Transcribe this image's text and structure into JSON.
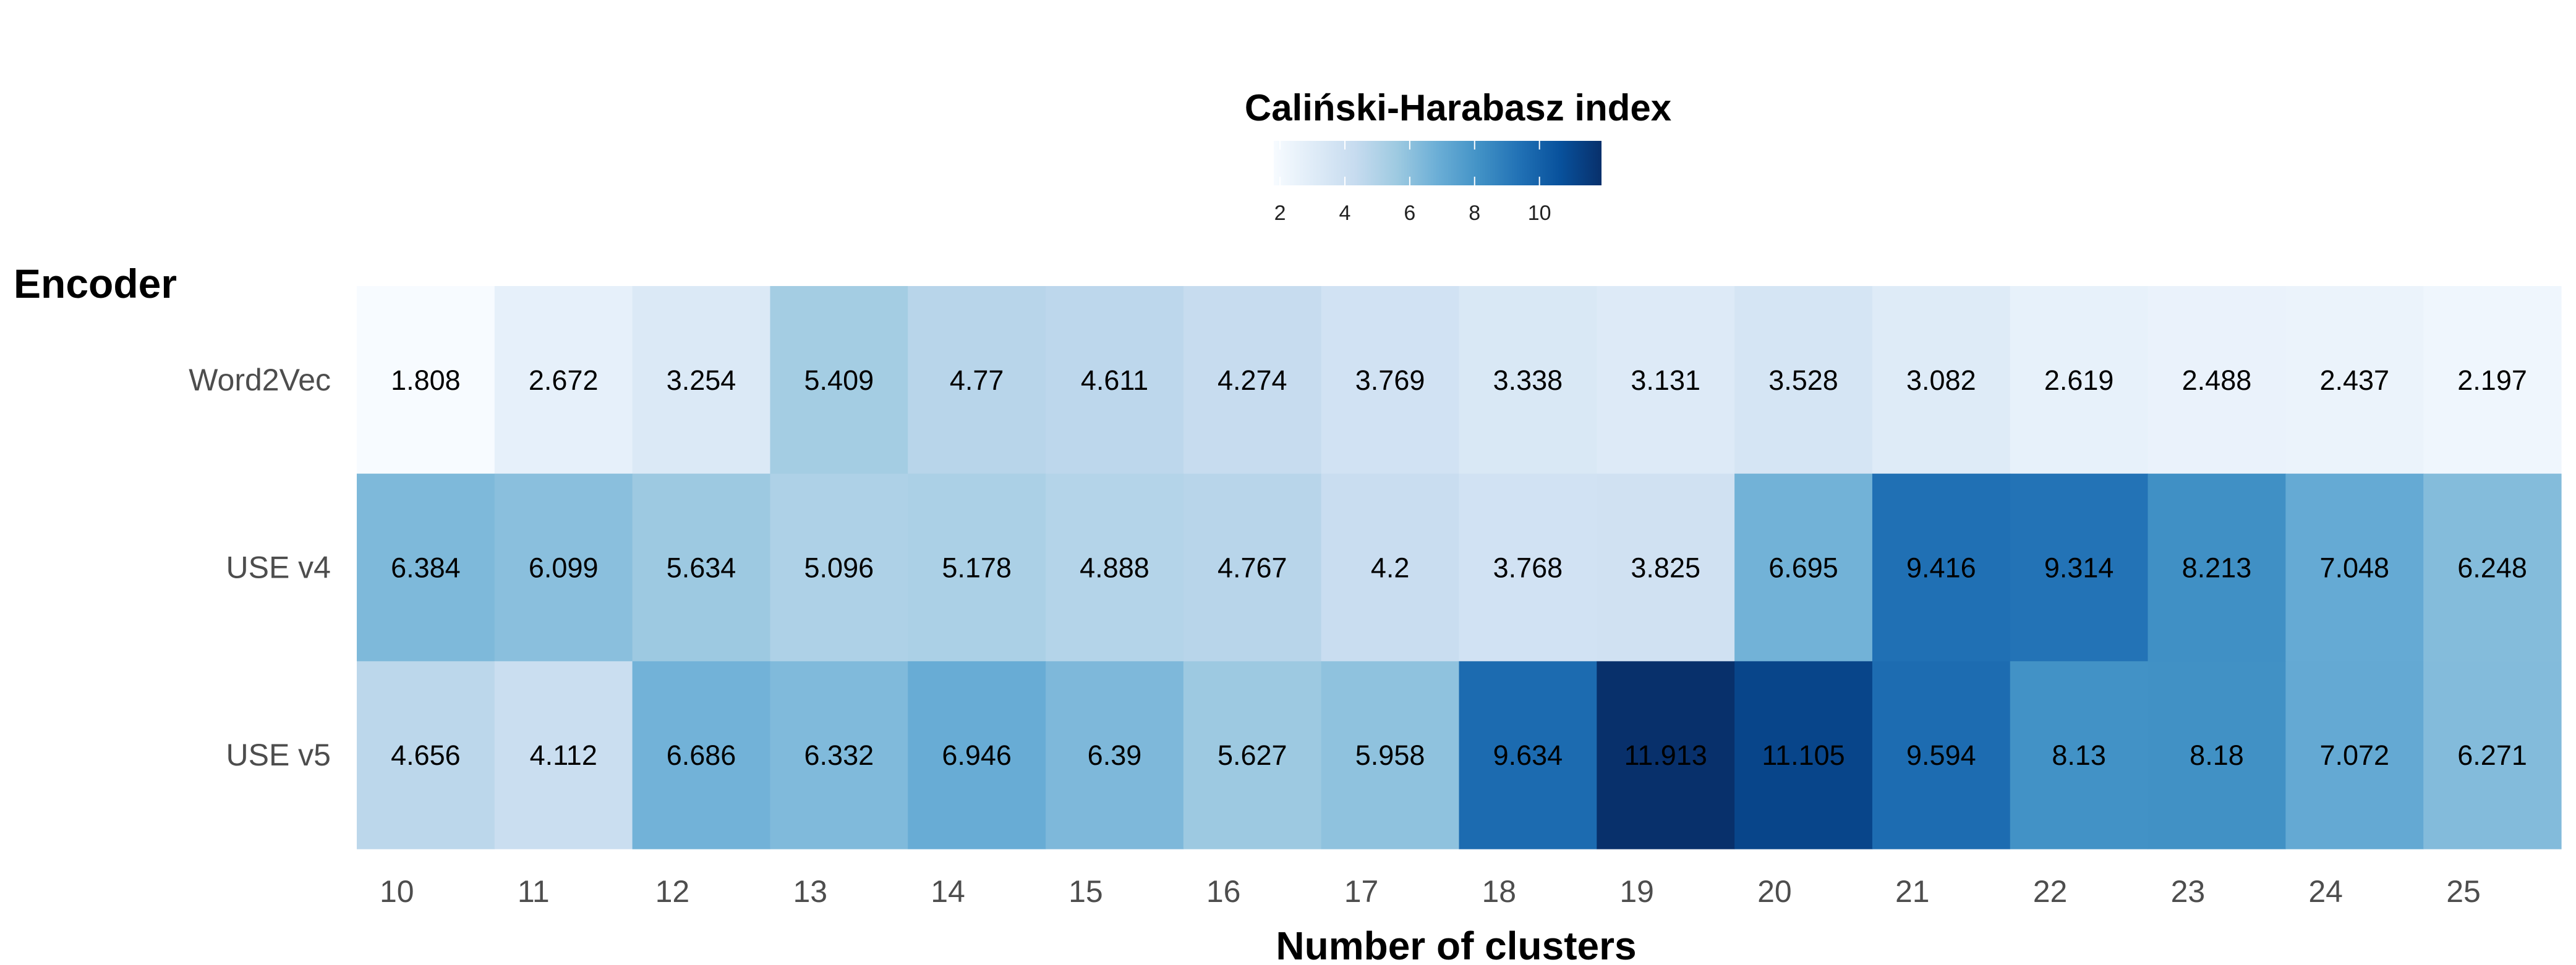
{
  "chart_data": {
    "type": "heatmap",
    "legend": {
      "title": "Caliński-Harabasz index",
      "ticks": [
        2,
        4,
        6,
        8,
        10
      ],
      "range": [
        1.808,
        11.913
      ],
      "colors": [
        "#f7fbff",
        "#deebf7",
        "#c6dbef",
        "#9ecae1",
        "#6baed6",
        "#4292c6",
        "#2171b5",
        "#08519c",
        "#08306b"
      ]
    },
    "xlabel": "Number of clusters",
    "ylabel": "Encoder",
    "x": [
      "10",
      "11",
      "12",
      "13",
      "14",
      "15",
      "16",
      "17",
      "18",
      "19",
      "20",
      "21",
      "22",
      "23",
      "24",
      "25"
    ],
    "y": [
      "Word2Vec",
      "USE v4",
      "USE v5"
    ],
    "values": [
      [
        "1.808",
        "2.672",
        "3.254",
        "5.409",
        "4.77",
        "4.611",
        "4.274",
        "3.769",
        "3.338",
        "3.131",
        "3.528",
        "3.082",
        "2.619",
        "2.488",
        "2.437",
        "2.197"
      ],
      [
        "6.384",
        "6.099",
        "5.634",
        "5.096",
        "5.178",
        "4.888",
        "4.767",
        "4.2",
        "3.768",
        "3.825",
        "6.695",
        "9.416",
        "9.314",
        "8.213",
        "7.048",
        "6.248"
      ],
      [
        "4.656",
        "4.112",
        "6.686",
        "6.332",
        "6.946",
        "6.39",
        "5.627",
        "5.958",
        "9.634",
        "11.913",
        "11.105",
        "9.594",
        "8.13",
        "8.18",
        "7.072",
        "6.271"
      ]
    ]
  }
}
